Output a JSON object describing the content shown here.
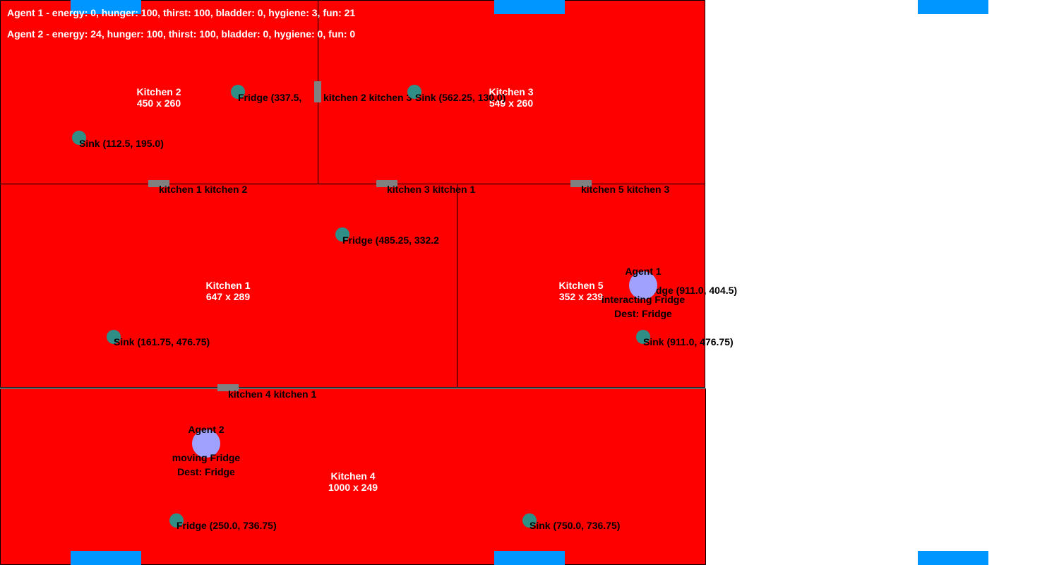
{
  "colors": {
    "room": "#ff0000",
    "marker": "#2f8f86",
    "agent": "#a0a0ff",
    "door": "#808080",
    "edge": "#0096ff"
  },
  "status": [
    "Agent 1 - energy: 0, hunger: 100, thirst: 100, bladder: 0, hygiene: 3, fun: 21",
    "Agent 2 - energy: 24, hunger: 100, thirst: 100, bladder: 0, hygiene: 0, fun: 0"
  ],
  "rooms": [
    {
      "name": "Kitchen 2",
      "size": "450 x 260"
    },
    {
      "name": "Kitchen 3",
      "size": "549 x 260"
    },
    {
      "name": "Kitchen 1",
      "size": "647 x 289"
    },
    {
      "name": "Kitchen 5",
      "size": "352 x 239"
    },
    {
      "name": "Kitchen 4",
      "size": "1000 x 249"
    }
  ],
  "objects": [
    {
      "icon": "fridge-icon",
      "label": "Fridge (337.5, "
    },
    {
      "icon": "sink-icon",
      "label": "Sink (112.5, 195.0)"
    },
    {
      "icon": "sink-icon",
      "label": "Sink (562.25, 130.0)"
    },
    {
      "icon": "fridge-icon",
      "label": "Fridge (485.25, 332.2"
    },
    {
      "icon": "sink-icon",
      "label": "Sink (161.75, 476.75)"
    },
    {
      "icon": "fridge-icon",
      "label": "Fridge (911.0, 404.5)"
    },
    {
      "icon": "sink-icon",
      "label": "Sink (911.0, 476.75)"
    },
    {
      "icon": "fridge-icon",
      "label": "Fridge (250.0, 736.75)"
    },
    {
      "icon": "sink-icon",
      "label": "Sink (750.0, 736.75)"
    }
  ],
  "doors": [
    {
      "label": "kitchen 2 kitchen 3"
    },
    {
      "label": "kitchen 1 kitchen 2"
    },
    {
      "label": "kitchen 3 kitchen 1"
    },
    {
      "label": "kitchen 5 kitchen 3"
    },
    {
      "label": "kitchen 4 kitchen 1"
    }
  ],
  "agents": [
    {
      "name": "Agent 1",
      "state": "interacting Fridge",
      "dest": "Dest: Fridge"
    },
    {
      "name": "Agent 2",
      "state": "moving Fridge",
      "dest": "Dest: Fridge"
    }
  ]
}
